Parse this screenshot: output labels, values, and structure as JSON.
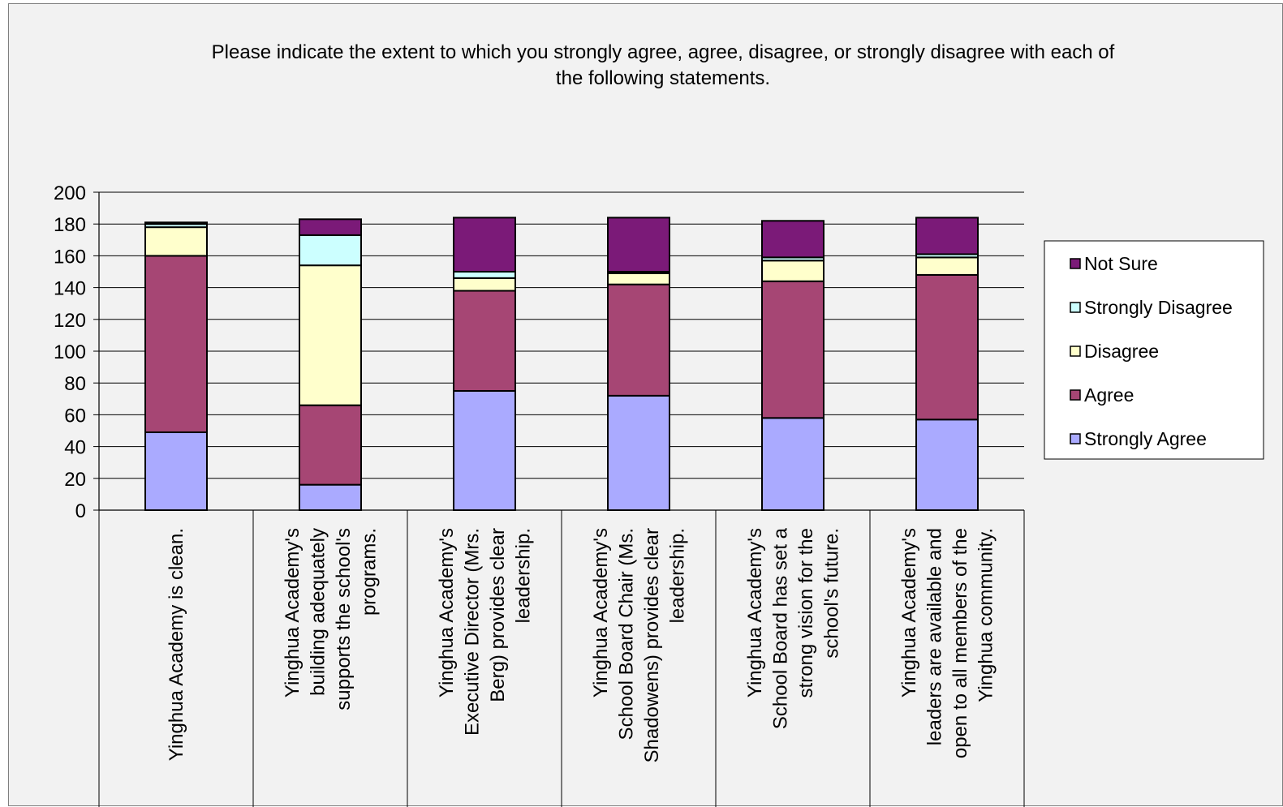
{
  "chart_data": {
    "type": "bar",
    "stacked": true,
    "title": "Please indicate the extent to which you strongly agree, agree, disagree, or strongly disagree with each of the following statements.",
    "title_lines": [
      "Please indicate the extent to which you strongly agree, agree, disagree, or strongly disagree with each of",
      "the following statements."
    ],
    "ylim": [
      0,
      200
    ],
    "yticks": [
      0,
      20,
      40,
      60,
      80,
      100,
      120,
      140,
      160,
      180,
      200
    ],
    "grid": true,
    "legend_position": "right",
    "categories": [
      "Yinghua Academy is clean.",
      "Yinghua Academy's building adequately supports the school's programs.",
      "Yinghua Academy's Executive Director (Mrs. Berg) provides clear leadership.",
      "Yinghua Academy's School Board Chair (Ms. Shadowens) provides clear leadership.",
      "Yinghua Academy's School Board has set a strong vision for the school's future.",
      "Yinghua Academy's leaders are available and open to all members of the Yinghua community."
    ],
    "category_lines": [
      [
        "Yinghua Academy is clean."
      ],
      [
        "Yinghua Academy's",
        "building adequately",
        "supports the school's",
        "programs."
      ],
      [
        "Yinghua Academy's",
        "Executive Director (Mrs.",
        "Berg) provides clear",
        "leadership."
      ],
      [
        "Yinghua Academy's",
        "School Board Chair (Ms.",
        "Shadowens) provides clear",
        "leadership."
      ],
      [
        "Yinghua Academy's",
        "School Board has set a",
        "strong vision for the",
        "school's future."
      ],
      [
        "Yinghua Academy's",
        "leaders are available and",
        "open to all members of the",
        "Yinghua community."
      ]
    ],
    "series": [
      {
        "name": "Strongly Agree",
        "color": "#aaaaff",
        "values": [
          49,
          16,
          75,
          72,
          58,
          57
        ]
      },
      {
        "name": "Agree",
        "color": "#a64674",
        "values": [
          111,
          50,
          63,
          70,
          86,
          91
        ]
      },
      {
        "name": "Disagree",
        "color": "#ffffcc",
        "values": [
          18,
          88,
          8,
          7,
          13,
          11
        ]
      },
      {
        "name": "Strongly Disagree",
        "color": "#ccffff",
        "values": [
          2,
          19,
          4,
          1,
          2,
          2
        ]
      },
      {
        "name": "Not Sure",
        "color": "#7b1a78",
        "values": [
          1,
          10,
          34,
          34,
          23,
          23
        ]
      }
    ],
    "legend_order": [
      "Not Sure",
      "Strongly Disagree",
      "Disagree",
      "Agree",
      "Strongly Agree"
    ]
  }
}
